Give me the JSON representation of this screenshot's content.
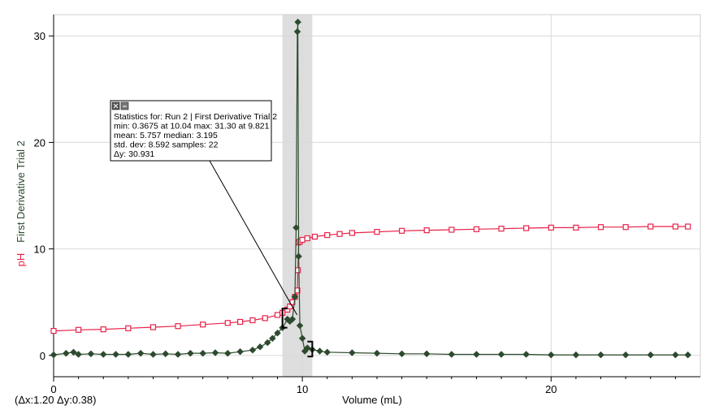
{
  "chart_data": {
    "type": "scatter",
    "xlabel": "Volume (mL)",
    "ylabel_ph": "pH",
    "ylabel_derivative": "First Derivative Trial 2",
    "xlim": [
      0,
      26
    ],
    "ylim": [
      -2,
      32
    ],
    "x_ticks": [
      0,
      10,
      20
    ],
    "y_ticks": [
      0,
      10,
      20,
      30
    ],
    "grid": true,
    "selection_range": [
      9.2,
      10.4
    ],
    "series": [
      {
        "name": "pH",
        "color": "#e8224a",
        "marker": "square",
        "x": [
          0,
          1,
          2,
          3,
          4,
          5,
          6,
          7,
          7.5,
          8,
          8.5,
          9,
          9.2,
          9.4,
          9.5,
          9.6,
          9.7,
          9.8,
          9.82,
          9.85,
          9.9,
          10.0,
          10.2,
          10.5,
          11,
          11.5,
          12,
          13,
          14,
          15,
          16,
          17,
          18,
          19,
          20,
          21,
          22,
          23,
          24,
          25,
          25.5
        ],
        "y": [
          2.3,
          2.4,
          2.45,
          2.55,
          2.65,
          2.75,
          2.9,
          3.05,
          3.15,
          3.3,
          3.5,
          3.8,
          4.0,
          4.3,
          4.6,
          5.0,
          5.5,
          6.1,
          8.0,
          10.6,
          10.7,
          10.85,
          11.0,
          11.15,
          11.3,
          11.4,
          11.5,
          11.6,
          11.7,
          11.75,
          11.8,
          11.85,
          11.9,
          11.95,
          12.0,
          12.0,
          12.05,
          12.05,
          12.1,
          12.1,
          12.1
        ]
      },
      {
        "name": "First Derivative Trial 2",
        "color": "#2d4a2e",
        "marker": "diamond",
        "x": [
          0,
          0.5,
          0.8,
          1,
          1.5,
          2,
          2.5,
          3,
          3.5,
          4,
          4.5,
          5,
          5.5,
          6,
          6.5,
          7,
          7.5,
          8,
          8.3,
          8.6,
          8.8,
          9.0,
          9.2,
          9.4,
          9.5,
          9.6,
          9.7,
          9.75,
          9.8,
          9.82,
          9.85,
          9.9,
          10.0,
          10.1,
          10.2,
          10.4,
          10.7,
          11,
          12,
          13,
          14,
          15,
          16,
          17,
          18,
          19,
          20,
          21,
          22,
          23,
          24,
          25,
          25.5
        ],
        "y": [
          0.05,
          0.2,
          0.3,
          0.1,
          0.15,
          0.1,
          0.1,
          0.1,
          0.2,
          0.1,
          0.15,
          0.1,
          0.2,
          0.2,
          0.25,
          0.2,
          0.35,
          0.5,
          0.8,
          1.2,
          1.6,
          2.1,
          2.6,
          3.4,
          3.2,
          3.4,
          5.5,
          12.0,
          30.4,
          31.3,
          9.3,
          2.8,
          1.6,
          0.4,
          0.7,
          0.55,
          0.4,
          0.3,
          0.25,
          0.2,
          0.15,
          0.15,
          0.1,
          0.1,
          0.1,
          0.1,
          0.05,
          0.05,
          0.05,
          0.05,
          0.05,
          0.05,
          0.05
        ]
      }
    ],
    "stats_box": {
      "lines": [
        "Statistics for: Run 2 | First Derivative Trial 2",
        "min: 0.3675 at 10.04 max: 31.30 at 9.821",
        "mean: 5.757 median: 3.195",
        "std. dev: 8.592 samples: 22",
        "Δy: 30.931"
      ]
    },
    "delta_readout": "(Δx:1.20 Δy:0.38)"
  }
}
